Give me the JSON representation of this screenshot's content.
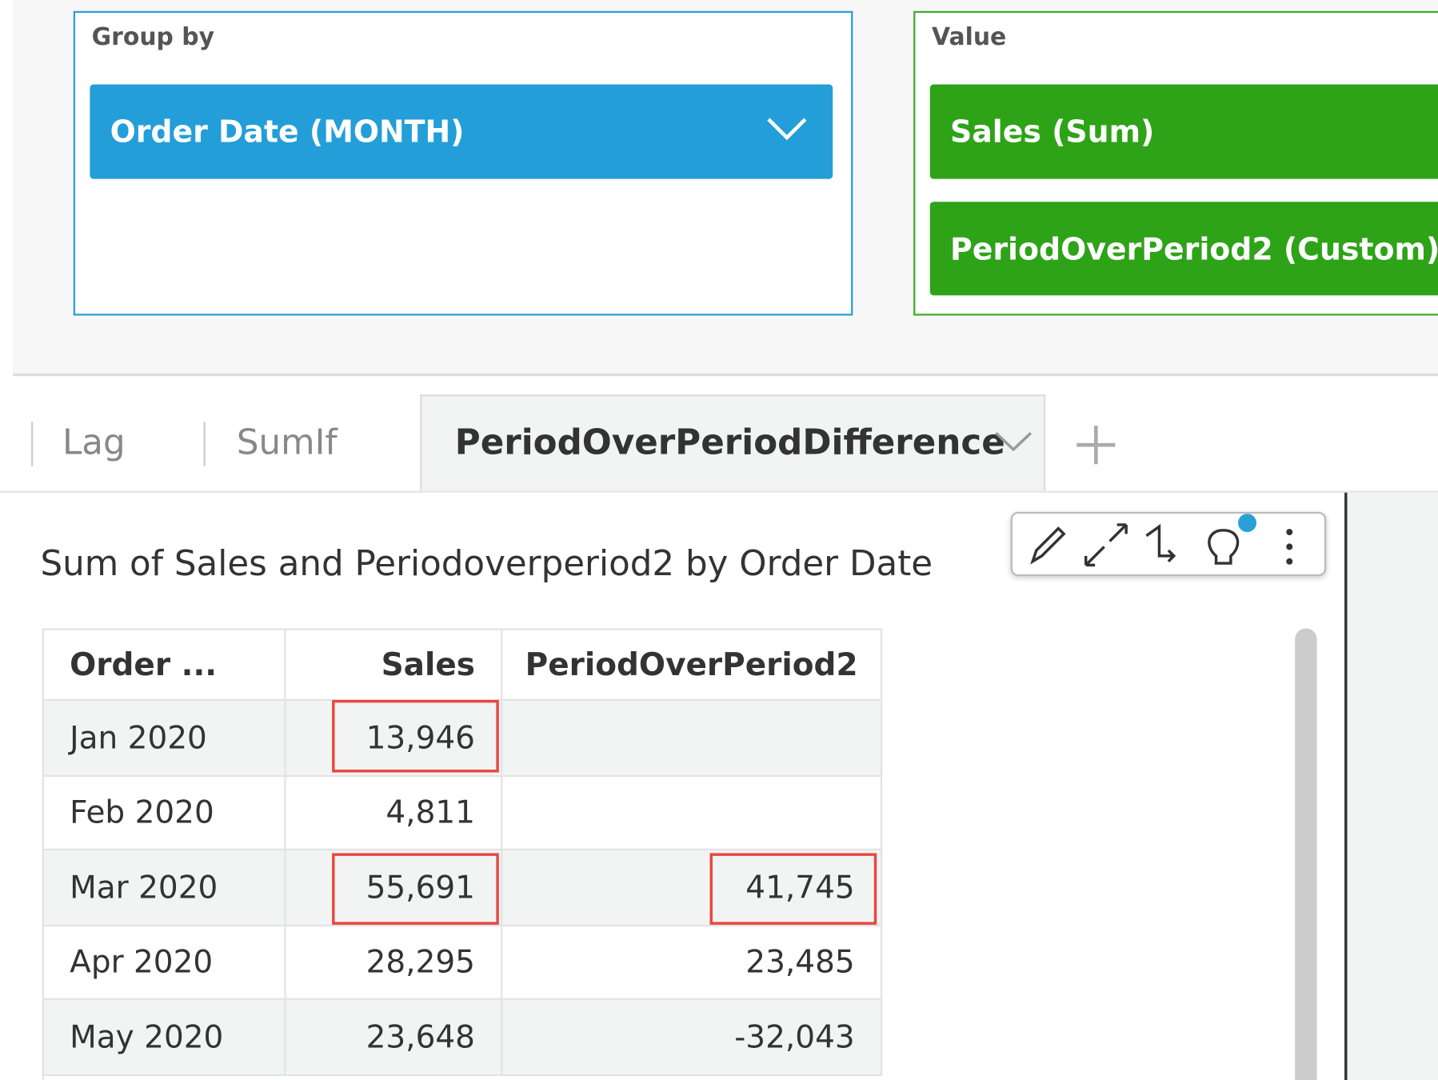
{
  "field_wells": {
    "group_by": {
      "label": "Group by",
      "fields": [
        "Order Date (MONTH)"
      ]
    },
    "value": {
      "label": "Value",
      "fields": [
        "Sales (Sum)",
        "PeriodOverPeriod2 (Custom)"
      ]
    }
  },
  "tabs": [
    "Lag",
    "SumIf",
    "PeriodOverPeriodDifference"
  ],
  "visual": {
    "title": "Sum of Sales and Periodoverperiod2 by Order Date",
    "table": {
      "columns": [
        "Order ...",
        "Sales",
        "PeriodOverPeriod2"
      ],
      "rows": [
        [
          "Jan 2020",
          "13,946",
          null
        ],
        [
          "Feb 2020",
          "4,811",
          null
        ],
        [
          "Mar 2020",
          "55,691",
          "41,745"
        ],
        [
          "Apr 2020",
          "28,295",
          "23,485"
        ],
        [
          "May 2020",
          "23,648",
          "-32,043"
        ]
      ]
    }
  }
}
